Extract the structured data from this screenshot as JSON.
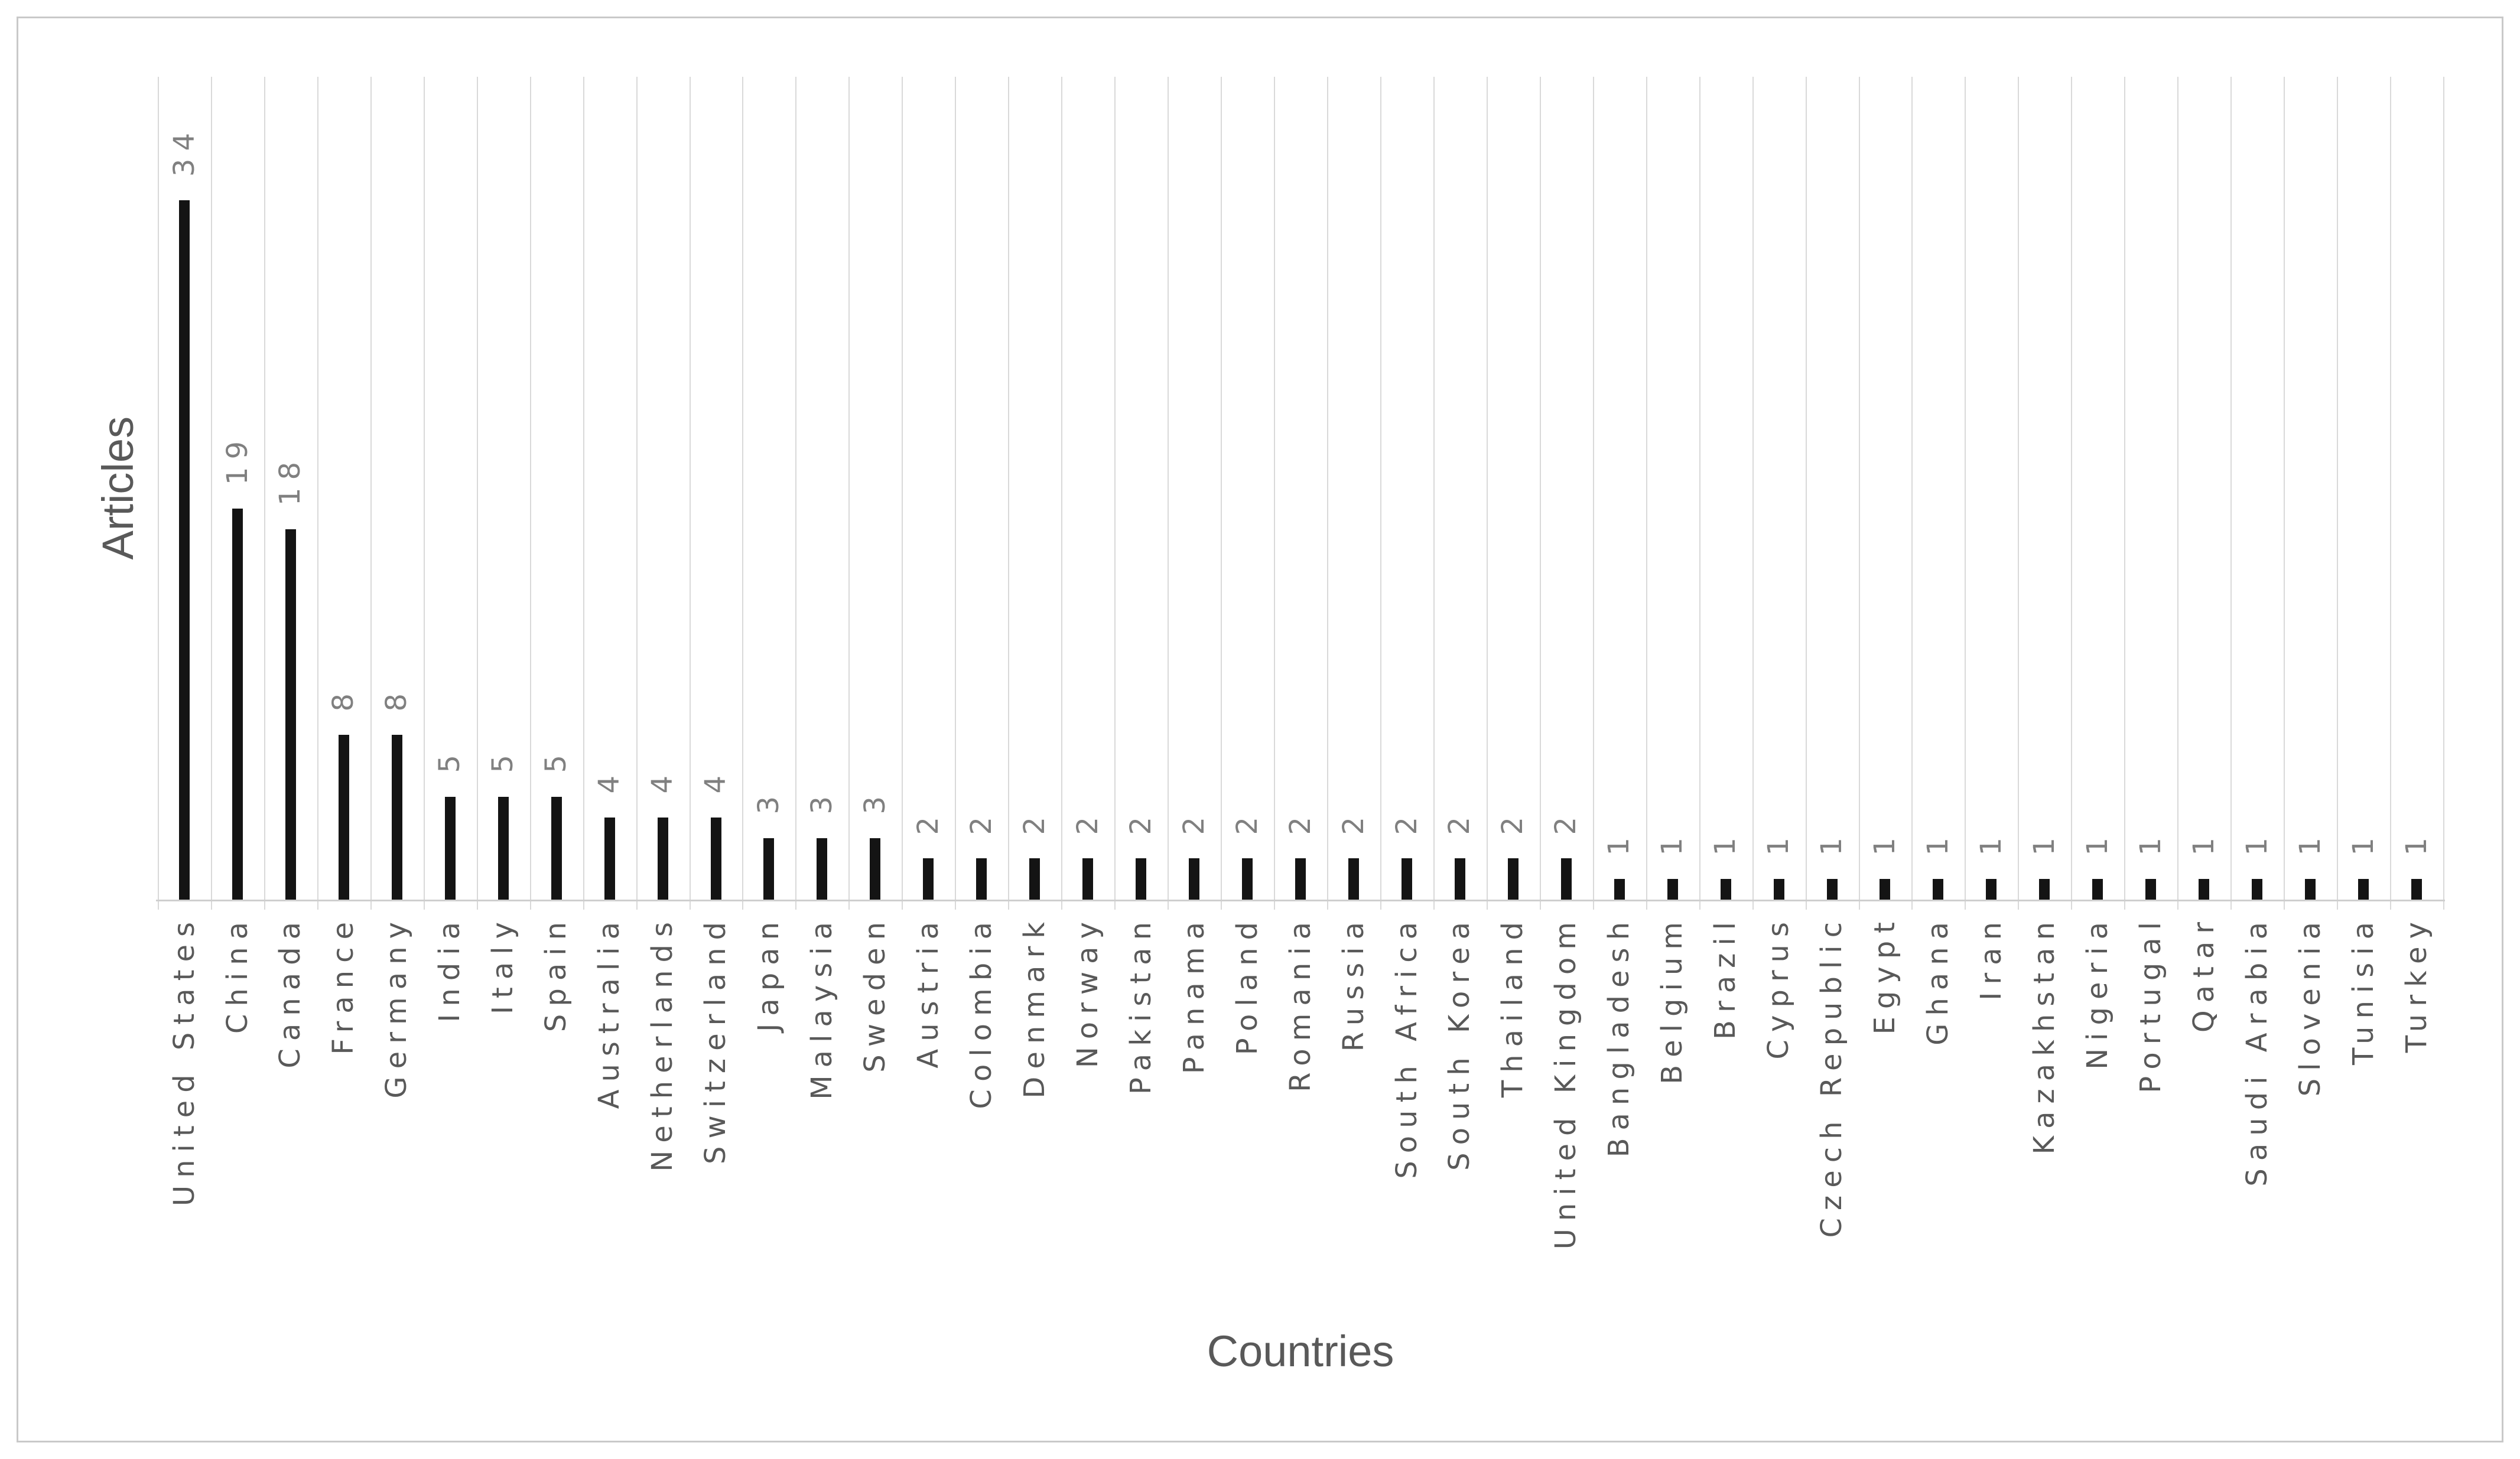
{
  "chart_data": {
    "type": "bar",
    "title": "",
    "xlabel": "Countries",
    "ylabel": "Articles",
    "categories": [
      "United States",
      "China",
      "Canada",
      "France",
      "Germany",
      "India",
      "Italy",
      "Spain",
      "Australia",
      "Netherlands",
      "Switzerland",
      "Japan",
      "Malaysia",
      "Sweden",
      "Austria",
      "Colombia",
      "Denmark",
      "Norway",
      "Pakistan",
      "Panama",
      "Poland",
      "Romania",
      "Russia",
      "South Africa",
      "South Korea",
      "Thailand",
      "United Kingdom",
      "Bangladesh",
      "Belgium",
      "Brazil",
      "Cyprus",
      "Czech Republic",
      "Egypt",
      "Ghana",
      "Iran",
      "Kazakhstan",
      "Nigeria",
      "Portugal",
      "Qatar",
      "Saudi Arabia",
      "Slovenia",
      "Tunisia",
      "Turkey"
    ],
    "values": [
      34,
      19,
      18,
      8,
      8,
      5,
      5,
      5,
      4,
      4,
      4,
      3,
      3,
      3,
      2,
      2,
      2,
      2,
      2,
      2,
      2,
      2,
      2,
      2,
      2,
      2,
      2,
      1,
      1,
      1,
      1,
      1,
      1,
      1,
      1,
      1,
      1,
      1,
      1,
      1,
      1,
      1,
      1
    ],
    "data_labels": true,
    "ylim": [
      0,
      40
    ],
    "grid": "vertical category gridlines only",
    "legend": "none"
  },
  "colors": {
    "bar": "#141414",
    "gridline": "#d9d9d9",
    "axis_line": "#cfcfcf",
    "value_label": "#808080",
    "category_label": "#595959",
    "axis_title": "#595959",
    "frame_border": "#c9c9c9",
    "background": "#ffffff"
  }
}
